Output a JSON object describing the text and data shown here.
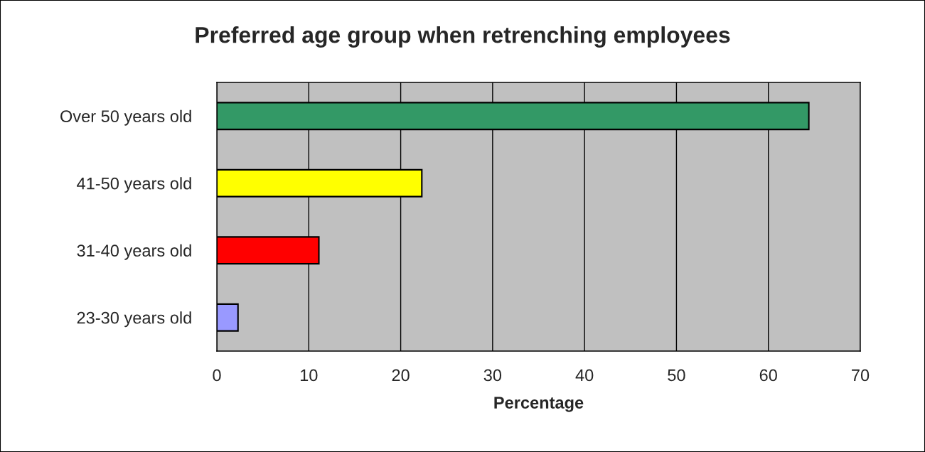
{
  "chart_data": {
    "type": "bar",
    "orientation": "horizontal",
    "title": "Preferred age group when retrenching employees",
    "xlabel": "Percentage",
    "categories": [
      "Over 50 years old",
      "41-50 years old",
      "31-40 years old",
      "23-30 years old"
    ],
    "values": [
      64.4,
      22.3,
      11.1,
      2.3
    ],
    "colors": [
      "#339966",
      "#ffff00",
      "#ff0000",
      "#9999ff"
    ],
    "xlim": [
      0,
      70
    ],
    "xticks": [
      0,
      10,
      20,
      30,
      40,
      50,
      60,
      70
    ],
    "grid": "x",
    "legend": false
  }
}
